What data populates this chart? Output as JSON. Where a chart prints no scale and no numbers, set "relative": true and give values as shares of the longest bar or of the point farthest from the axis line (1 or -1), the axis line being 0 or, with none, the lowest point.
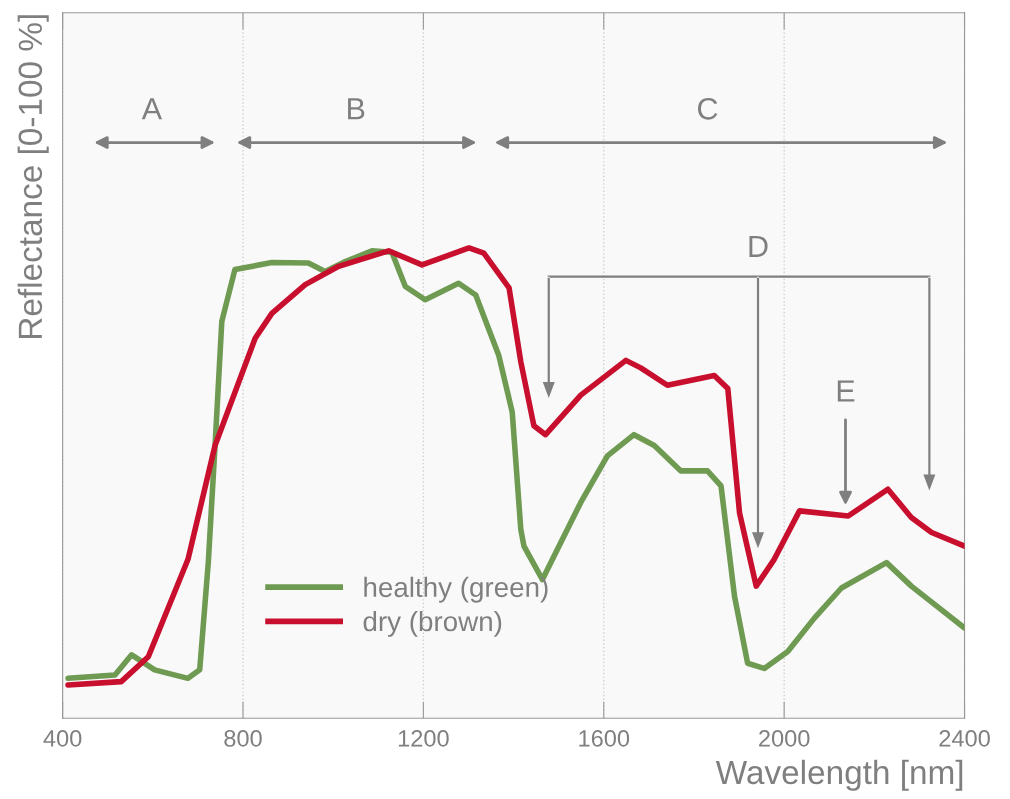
{
  "chart_data": {
    "type": "line",
    "relative": true,
    "xlabel": "Wavelength [nm]",
    "ylabel": "Reflectance [0-100 %]",
    "xlim": [
      400,
      2400
    ],
    "xticks": [
      400,
      800,
      1200,
      1600,
      2000,
      2400
    ],
    "grid": "x",
    "legend": "bottom left",
    "line_style": "solid",
    "marker": "none",
    "series": [
      {
        "name": "healthy (green)",
        "color": "#6e9a52",
        "x": [
          412,
          516,
          553,
          604,
          678,
          704,
          723,
          738,
          753,
          782,
          864,
          945,
          982,
          1027,
          1086,
          1130,
          1160,
          1204,
          1278,
          1316,
          1367,
          1397,
          1416,
          1423,
          1464,
          1497,
          1549,
          1608,
          1667,
          1712,
          1771,
          1830,
          1860,
          1890,
          1919,
          1956,
          2008,
          2067,
          2127,
          2227,
          2282,
          2400
        ],
        "values": [
          0.085,
          0.092,
          0.135,
          0.103,
          0.085,
          0.103,
          0.331,
          0.58,
          0.844,
          0.954,
          0.969,
          0.968,
          0.95,
          0.971,
          0.994,
          0.991,
          0.918,
          0.89,
          0.925,
          0.9,
          0.772,
          0.651,
          0.402,
          0.366,
          0.295,
          0.359,
          0.459,
          0.558,
          0.603,
          0.58,
          0.526,
          0.526,
          0.494,
          0.259,
          0.117,
          0.106,
          0.142,
          0.213,
          0.277,
          0.331,
          0.281,
          0.192
        ]
      },
      {
        "name": "dry (brown)",
        "color": "#c8102e",
        "x": [
          412,
          530,
          590,
          678,
          738,
          827,
          864,
          938,
          1012,
          1123,
          1197,
          1301,
          1334,
          1390,
          1416,
          1445,
          1471,
          1549,
          1649,
          1682,
          1741,
          1845,
          1875,
          1901,
          1938,
          1978,
          2034,
          2142,
          2230,
          2282,
          2327,
          2400
        ],
        "values": [
          0.071,
          0.078,
          0.131,
          0.338,
          0.58,
          0.808,
          0.861,
          0.922,
          0.961,
          0.994,
          0.964,
          1,
          0.989,
          0.915,
          0.758,
          0.622,
          0.603,
          0.687,
          0.761,
          0.745,
          0.708,
          0.729,
          0.701,
          0.437,
          0.281,
          0.338,
          0.441,
          0.43,
          0.487,
          0.427,
          0.395,
          0.366
        ]
      }
    ],
    "annotations": [
      "A",
      "B",
      "C",
      "D",
      "E"
    ]
  }
}
